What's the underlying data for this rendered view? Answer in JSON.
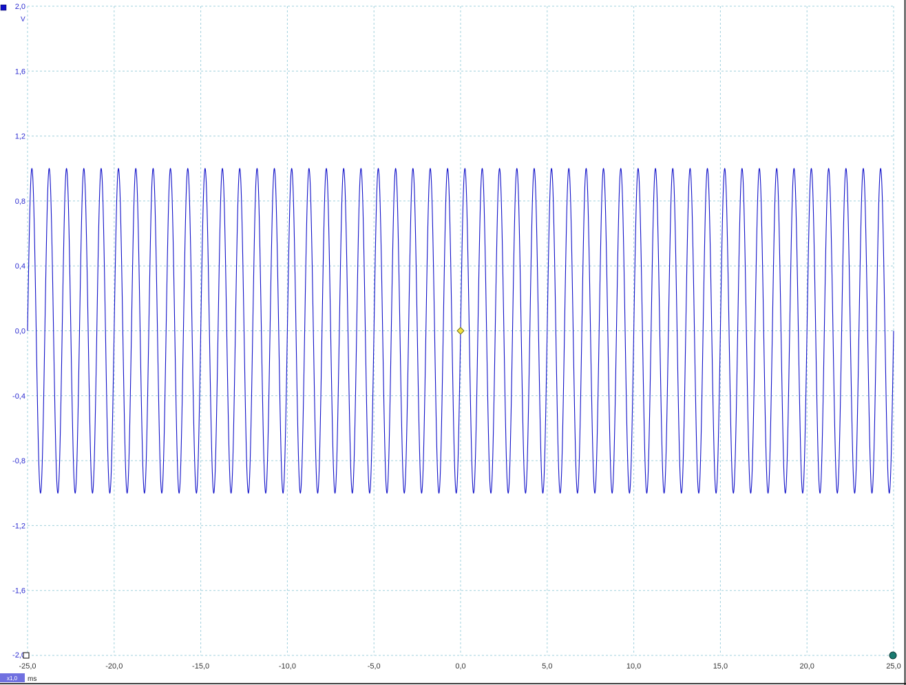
{
  "chart_data": {
    "type": "line",
    "x_unit": "ms",
    "y_unit": "V",
    "xlim": [
      -25,
      25
    ],
    "ylim": [
      -2,
      2
    ],
    "x_ticks": [
      "-25,0",
      "-20,0",
      "-15,0",
      "-10,0",
      "-5,0",
      "0,0",
      "5,0",
      "10,0",
      "15,0",
      "20,0",
      "25,0"
    ],
    "y_ticks": [
      "2,0",
      "1,6",
      "1,2",
      "0,8",
      "0,4",
      "0,0",
      "-0,4",
      "-0,8",
      "-1,2",
      "-1,6",
      "-2,0"
    ],
    "grid": true,
    "series": [
      {
        "type": "sine",
        "color": "#1010c8",
        "amplitude": 1.0,
        "frequency_khz": 1.0,
        "phase_deg": 0
      }
    ],
    "trigger_marker": {
      "x": 0,
      "y": 0,
      "color": "#f0e040"
    }
  },
  "controls": {
    "zoom_label": "x1,0",
    "channel_color": "#1010c8",
    "end_marker_color": "#1a7a70"
  }
}
